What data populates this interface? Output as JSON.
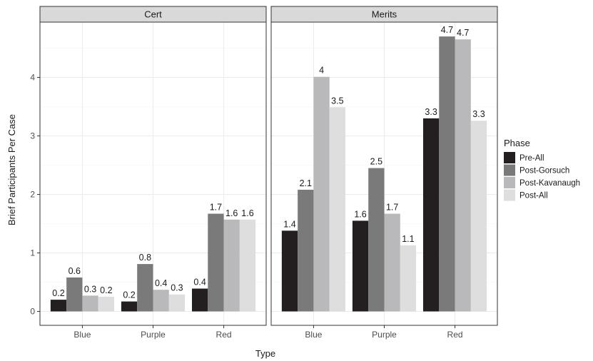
{
  "chart_data": {
    "type": "bar",
    "xlabel": "Type",
    "ylabel": "Brief Participants Per Case",
    "ylim": [
      0,
      5
    ],
    "yticks": [
      0,
      1,
      2,
      3,
      4
    ],
    "grid": true,
    "legend_position": "right",
    "legend_title": "Phase",
    "categories": [
      "Blue",
      "Purple",
      "Red"
    ],
    "series": [
      {
        "name": "Pre-All",
        "color": "#231f20"
      },
      {
        "name": "Post-Gorsuch",
        "color": "#7a7a7a"
      },
      {
        "name": "Post-Kavanaugh",
        "color": "#b9b9bb"
      },
      {
        "name": "Post-All",
        "color": "#dededf"
      }
    ],
    "panels": [
      {
        "title": "Cert",
        "values": [
          [
            0.2,
            0.58,
            0.27,
            0.25
          ],
          [
            0.17,
            0.81,
            0.37,
            0.29
          ],
          [
            0.39,
            1.67,
            1.57,
            1.57
          ]
        ],
        "labels": [
          [
            "0.2",
            "0.6",
            "0.3",
            "0.2"
          ],
          [
            "0.2",
            "0.8",
            "0.4",
            "0.3"
          ],
          [
            "0.4",
            "1.7",
            "1.6",
            "1.6"
          ]
        ]
      },
      {
        "title": "Merits",
        "values": [
          [
            1.38,
            2.08,
            4.01,
            3.49
          ],
          [
            1.55,
            2.45,
            1.67,
            1.13
          ],
          [
            3.3,
            4.7,
            4.65,
            3.26
          ]
        ],
        "labels": [
          [
            "1.4",
            "2.1",
            "4",
            "3.5"
          ],
          [
            "1.6",
            "2.5",
            "1.7",
            "1.1"
          ],
          [
            "3.3",
            "4.7",
            "4.7",
            "3.3"
          ]
        ]
      }
    ]
  }
}
